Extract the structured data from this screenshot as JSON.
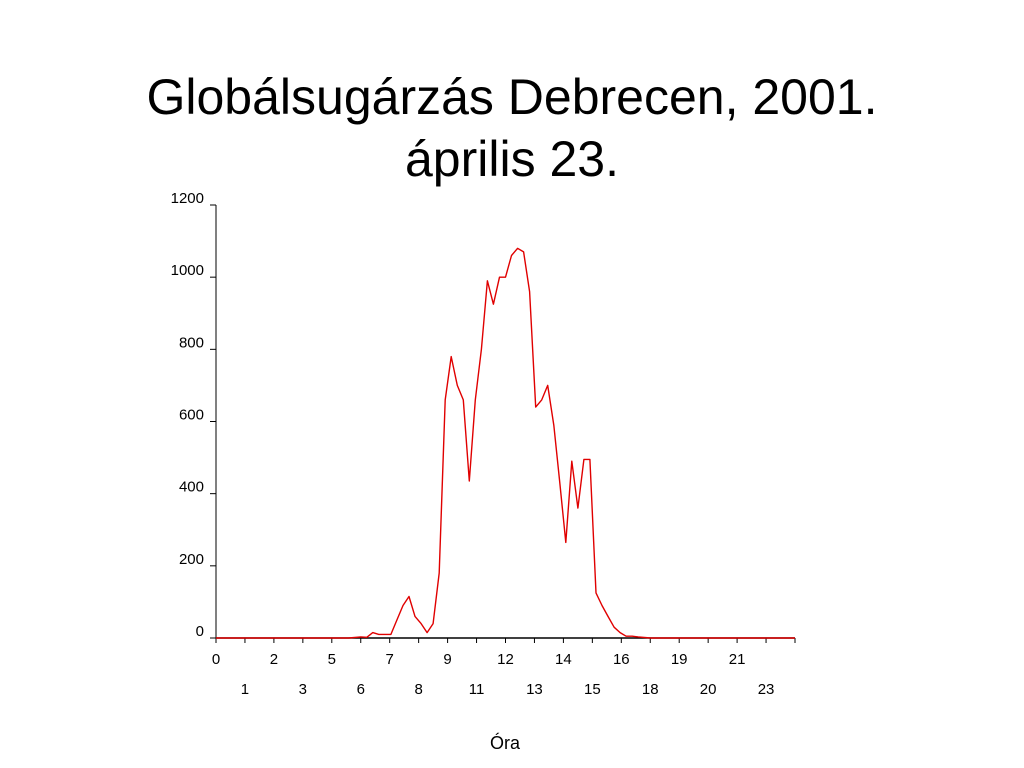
{
  "title": {
    "line1": "Globálsugárzás Debrecen, 2001.",
    "line2": "április 23."
  },
  "colors": {
    "line": "#e00000",
    "axis": "#000000"
  },
  "chart_data": {
    "type": "line",
    "title": "Globálsugárzás Debrecen, 2001. április 23.",
    "xlabel": "Óra",
    "ylabel": "",
    "ylim": [
      0,
      1200
    ],
    "yticks": [
      0,
      200,
      400,
      600,
      800,
      1000,
      1200
    ],
    "xlim": [
      0,
      24
    ],
    "x_tick_labels_row1": [
      "0",
      "2",
      "5",
      "7",
      "9",
      "12",
      "14",
      "16",
      "19",
      "21"
    ],
    "x_tick_labels_row2": [
      "1",
      "3",
      "6",
      "8",
      "11",
      "13",
      "15",
      "18",
      "20",
      "23"
    ],
    "grid": false,
    "legend": "none",
    "series": [
      {
        "x": [
          0,
          5.0,
          5.5,
          6.0,
          6.25,
          6.5,
          6.75,
          7.0,
          7.25,
          7.5,
          7.75,
          8.0,
          8.25,
          8.5,
          8.75,
          9.0,
          9.25,
          9.5,
          9.75,
          10.0,
          10.25,
          10.5,
          10.75,
          11.0,
          11.25,
          11.5,
          11.75,
          12.0,
          12.25,
          12.5,
          12.75,
          13.0,
          13.25,
          13.5,
          13.75,
          14.0,
          14.25,
          14.5,
          14.75,
          15.0,
          15.25,
          15.5,
          15.75,
          16.0,
          16.25,
          16.5,
          16.75,
          17.0,
          17.25,
          17.5,
          18.0,
          24.0
        ],
        "values": [
          0,
          0,
          0,
          3,
          2,
          15,
          10,
          10,
          10,
          50,
          90,
          115,
          60,
          40,
          15,
          40,
          180,
          660,
          780,
          700,
          660,
          435,
          660,
          800,
          990,
          925,
          1000,
          1000,
          1060,
          1080,
          1070,
          960,
          640,
          660,
          700,
          590,
          430,
          265,
          490,
          360,
          495,
          495,
          125,
          90,
          60,
          30,
          15,
          5,
          5,
          3,
          0,
          0
        ]
      }
    ]
  }
}
